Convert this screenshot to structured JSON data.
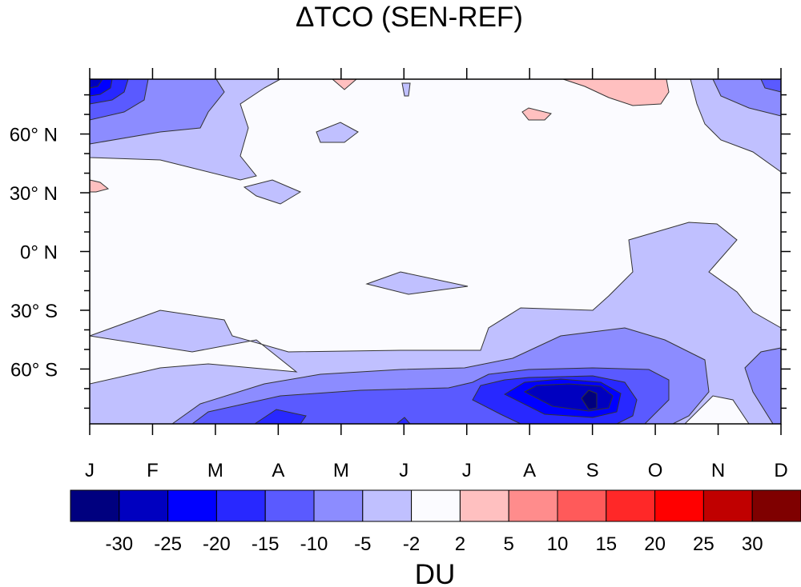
{
  "chart_data": {
    "type": "heatmap",
    "title": "ΔTCO (SEN-REF)",
    "xlabel": "",
    "ylabel": "",
    "x_tick_labels": [
      "J",
      "F",
      "M",
      "A",
      "M",
      "J",
      "J",
      "A",
      "S",
      "O",
      "N",
      "D"
    ],
    "y_tick_labels": [
      {
        "value": 60,
        "label": "60° N"
      },
      {
        "value": 30,
        "label": "30° N"
      },
      {
        "value": 0,
        "label": "0° N"
      },
      {
        "value": -30,
        "label": "30° S"
      },
      {
        "value": -60,
        "label": "60° S"
      }
    ],
    "ylim": [
      -88,
      88
    ],
    "xlim": [
      1,
      12
    ],
    "contour_levels": [
      -30,
      -25,
      -20,
      -15,
      -10,
      -5,
      -2,
      2,
      5,
      10,
      15,
      20,
      25,
      30
    ],
    "colorbar": {
      "label": "DU",
      "tick_labels": [
        "-30",
        "-25",
        "-20",
        "-15",
        "-10",
        "-5",
        "-2",
        "2",
        "5",
        "10",
        "15",
        "20",
        "25",
        "30"
      ],
      "colors": [
        "#00007f",
        "#0000c0",
        "#0000ff",
        "#2828ff",
        "#5a5aff",
        "#8c8cff",
        "#c0c0ff",
        "#fbfbff",
        "#ffc0c0",
        "#ff8c8c",
        "#ff5a5a",
        "#ff2828",
        "#ff0000",
        "#c00000",
        "#7f0000"
      ]
    },
    "features": [
      {
        "name": "southern-spring-minimum",
        "month": 9.0,
        "lat": -76,
        "value": -32
      },
      {
        "name": "arctic-winter-minimum",
        "month": 1.0,
        "lat": 85,
        "value": -22
      },
      {
        "name": "arctic-autumn-positive",
        "month": 9.5,
        "lat": 85,
        "value": 3
      }
    ]
  }
}
